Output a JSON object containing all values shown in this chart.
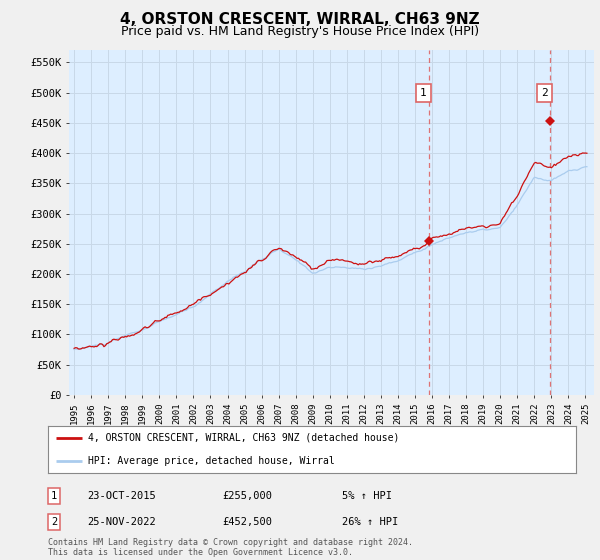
{
  "title": "4, ORSTON CRESCENT, WIRRAL, CH63 9NZ",
  "subtitle": "Price paid vs. HM Land Registry's House Price Index (HPI)",
  "title_fontsize": 11,
  "subtitle_fontsize": 9,
  "ylabel_ticks": [
    "£0",
    "£50K",
    "£100K",
    "£150K",
    "£200K",
    "£250K",
    "£300K",
    "£350K",
    "£400K",
    "£450K",
    "£500K",
    "£550K"
  ],
  "ytick_values": [
    0,
    50000,
    100000,
    150000,
    200000,
    250000,
    300000,
    350000,
    400000,
    450000,
    500000,
    550000
  ],
  "ylim": [
    0,
    570000
  ],
  "xlim_start": 1994.7,
  "xlim_end": 2025.5,
  "xtick_years": [
    1995,
    1996,
    1997,
    1998,
    1999,
    2000,
    2001,
    2002,
    2003,
    2004,
    2005,
    2006,
    2007,
    2008,
    2009,
    2010,
    2011,
    2012,
    2013,
    2014,
    2015,
    2016,
    2017,
    2018,
    2019,
    2020,
    2021,
    2022,
    2023,
    2024,
    2025
  ],
  "hpi_color": "#aaccee",
  "price_color": "#cc1111",
  "marker_color": "#cc1111",
  "vline_color": "#dd6666",
  "background_plot": "#ddeeff",
  "background_fig": "#f0f0f0",
  "grid_color": "#c8d8e8",
  "annotation1_label": "1",
  "annotation2_label": "2",
  "vline1_x": 2015.8,
  "vline2_x": 2022.9,
  "sale1_x": 2015.8,
  "sale1_y": 255000,
  "sale2_x": 2022.9,
  "sale2_y": 452500,
  "legend_entries": [
    "4, ORSTON CRESCENT, WIRRAL, CH63 9NZ (detached house)",
    "HPI: Average price, detached house, Wirral"
  ],
  "table_rows": [
    [
      "1",
      "23-OCT-2015",
      "£255,000",
      "5% ↑ HPI"
    ],
    [
      "2",
      "25-NOV-2022",
      "£452,500",
      "26% ↑ HPI"
    ]
  ],
  "footnote": "Contains HM Land Registry data © Crown copyright and database right 2024.\nThis data is licensed under the Open Government Licence v3.0."
}
